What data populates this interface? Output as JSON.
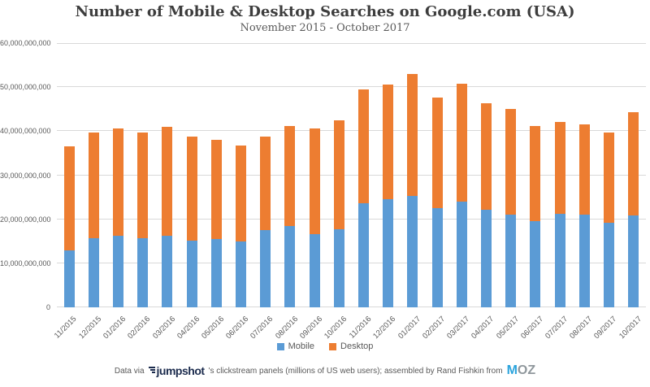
{
  "header": {
    "title": "Number of Mobile & Desktop Searches on Google.com (USA)",
    "subtitle": "November 2015 - October 2017"
  },
  "chart_data": {
    "type": "bar",
    "stacked": true,
    "title": "Number of Mobile & Desktop Searches on Google.com (USA)",
    "subtitle": "November 2015 - October 2017",
    "categories": [
      "11/2015",
      "12/2015",
      "01/2016",
      "02/2016",
      "03/2016",
      "04/2016",
      "05/2016",
      "06/2016",
      "07/2016",
      "08/2016",
      "09/2016",
      "10/2016",
      "11/2016",
      "12/2016",
      "01/2017",
      "02/2017",
      "03/2017",
      "04/2017",
      "05/2017",
      "06/2017",
      "07/2017",
      "08/2017",
      "09/2017",
      "10/2017"
    ],
    "series": [
      {
        "name": "Mobile",
        "color": "#5B9BD5",
        "values": [
          13000000000,
          15700000000,
          16300000000,
          15700000000,
          16300000000,
          15200000000,
          15500000000,
          15000000000,
          17500000000,
          18500000000,
          16600000000,
          17700000000,
          23600000000,
          24600000000,
          25300000000,
          22500000000,
          24000000000,
          22200000000,
          21000000000,
          19600000000,
          21200000000,
          21000000000,
          19300000000,
          20900000000
        ]
      },
      {
        "name": "Desktop",
        "color": "#ED7D31",
        "values": [
          23600000000,
          24000000000,
          24300000000,
          24000000000,
          24700000000,
          23600000000,
          22500000000,
          21700000000,
          21300000000,
          22700000000,
          24000000000,
          24800000000,
          25800000000,
          26000000000,
          27700000000,
          25200000000,
          26800000000,
          24200000000,
          24000000000,
          21600000000,
          21000000000,
          20500000000,
          20500000000,
          23500000000
        ]
      }
    ],
    "ylim": [
      0,
      60000000000
    ],
    "y_ticks": [
      "0",
      "10,000,000,000",
      "20,000,000,000",
      "30,000,000,000",
      "40,000,000,000",
      "50,000,000,000",
      "60,000,000,000"
    ],
    "grid": true,
    "legend_position": "bottom",
    "gridline_color": "#d9d9d9"
  },
  "footer": {
    "prefix": "Data via",
    "jumpshot_logo": "jumpshot",
    "middle": "'s clickstream panels (millions of US web users); assembled by Rand Fishkin from",
    "moz_logo": {
      "m": "M",
      "oz": "OZ"
    }
  }
}
